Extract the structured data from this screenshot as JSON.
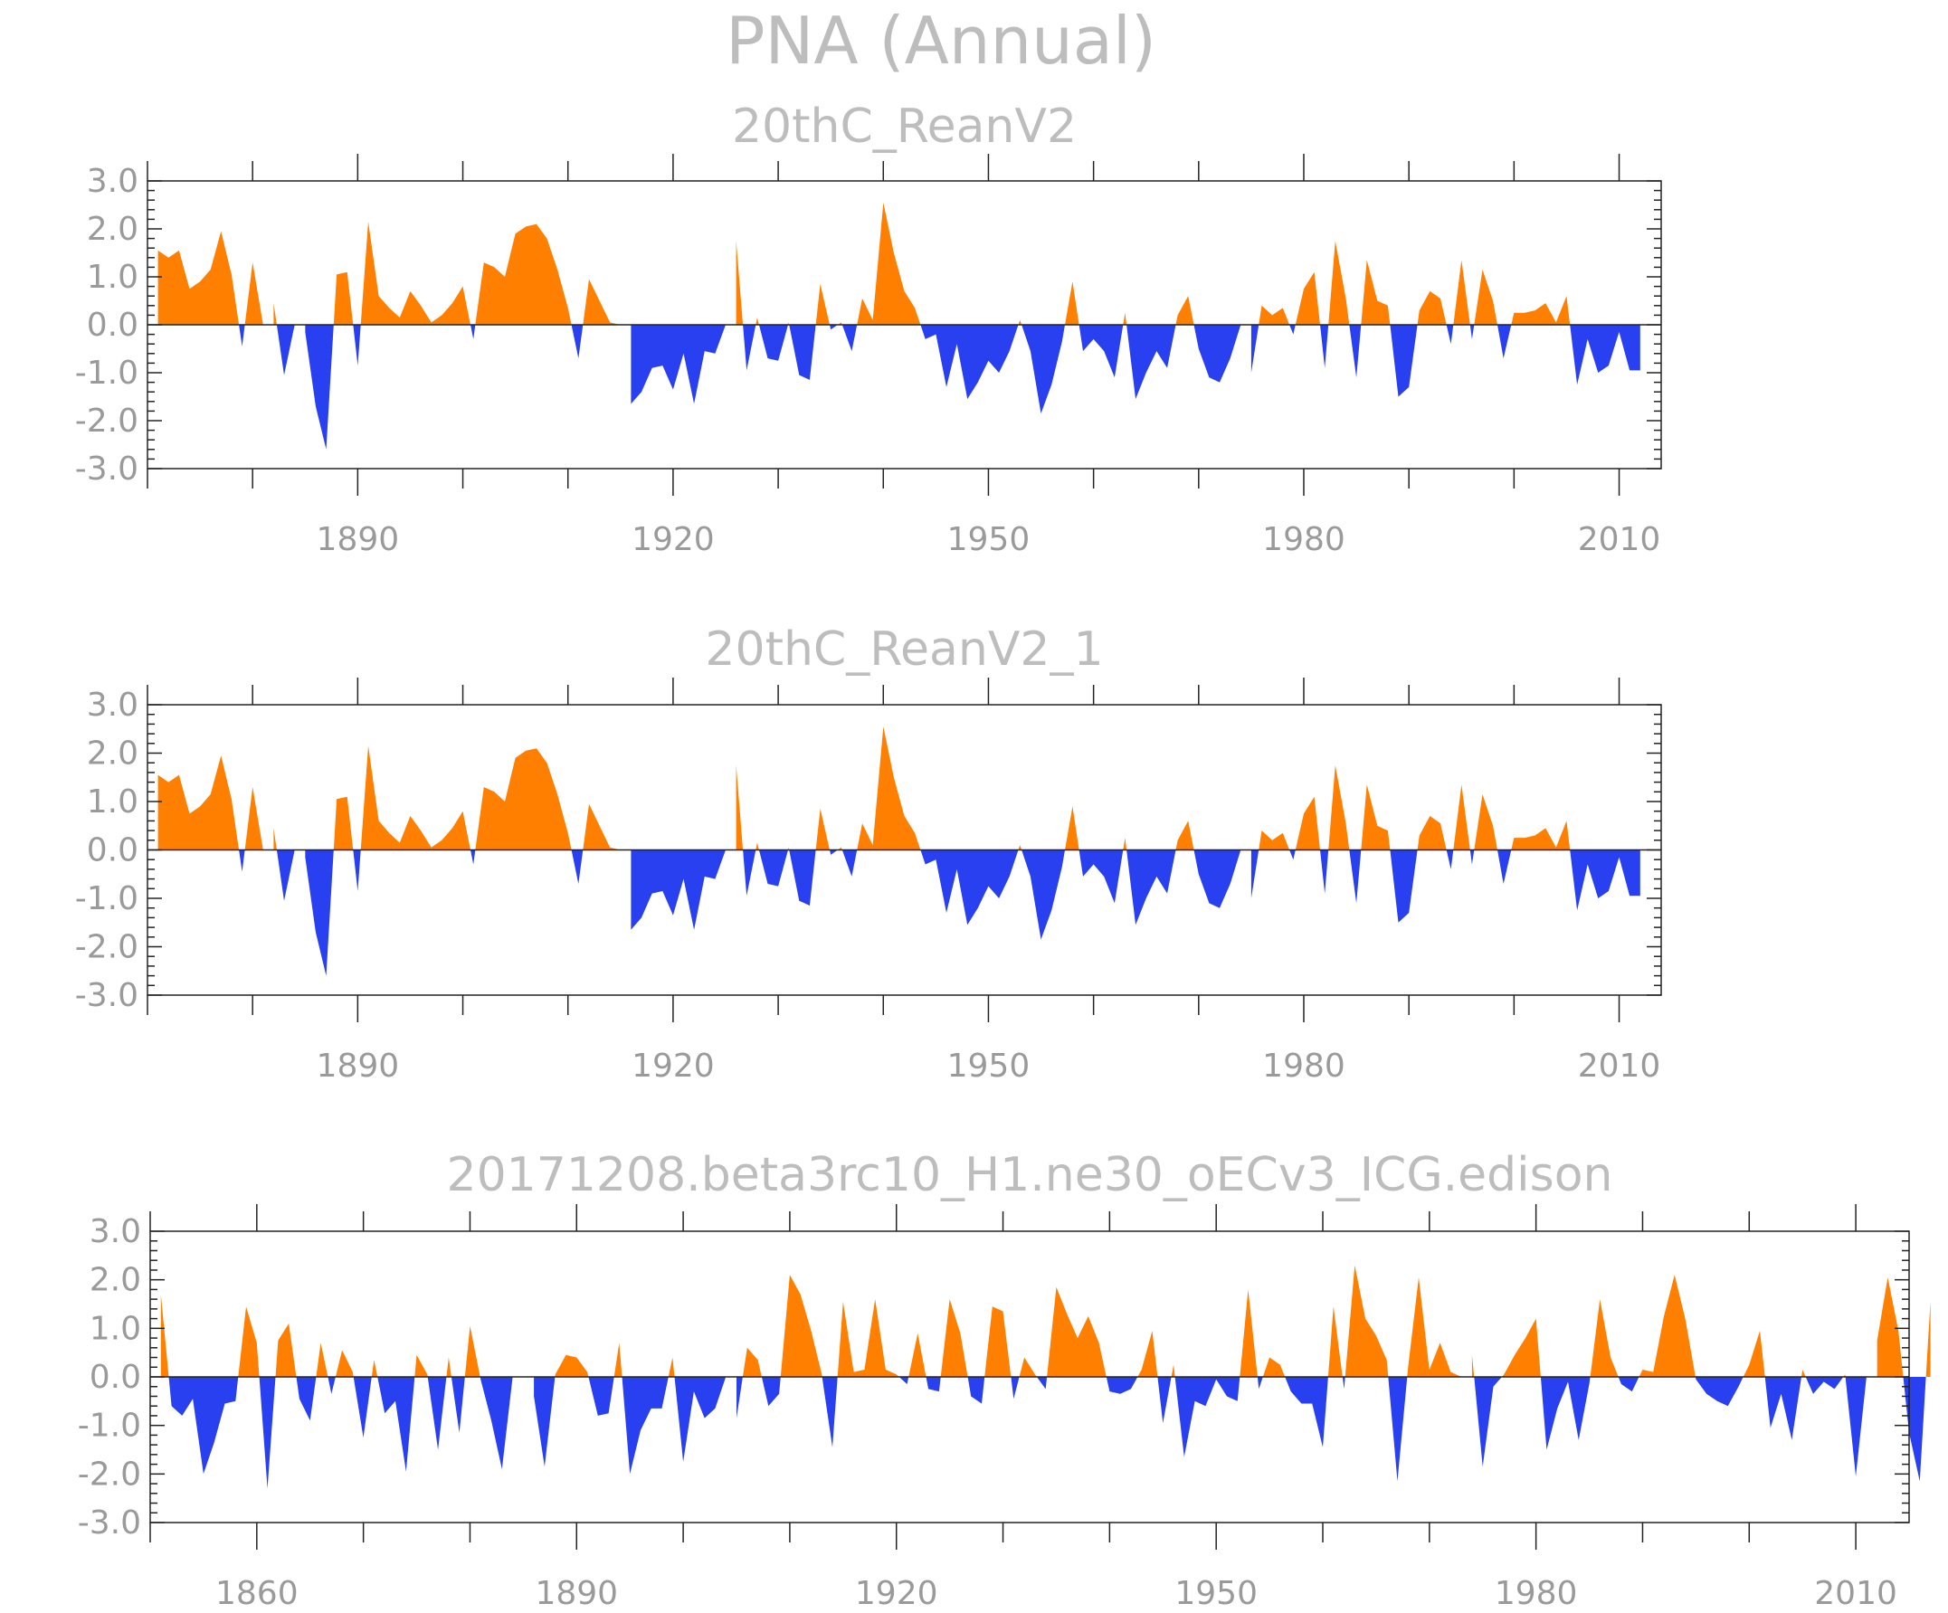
{
  "title": "PNA (Annual)",
  "colors": {
    "positive": "#ff8000",
    "negative": "#2840f0",
    "text": "#bdbdbd",
    "axis": "#222222"
  },
  "chart_data": [
    {
      "type": "area",
      "title": "20thC_ReanV2",
      "ylim": [
        -3.0,
        3.0
      ],
      "yticks": [
        "3.0",
        "2.0",
        "1.0",
        "0.0",
        "-1.0",
        "-2.0",
        "-3.0"
      ],
      "xlim": [
        1870,
        2014
      ],
      "xticks": [
        "1890",
        "1920",
        "1950",
        "1980",
        "2010"
      ],
      "start_year": 1871,
      "values": [
        1.55,
        1.4,
        1.55,
        0.75,
        0.9,
        1.15,
        1.95,
        1.05,
        -0.45,
        1.3,
        0.0,
        0.45,
        -1.05,
        0.0,
        -0.15,
        -1.7,
        -2.6,
        1.05,
        1.1,
        -0.85,
        2.15,
        0.6,
        0.35,
        0.15,
        0.7,
        0.4,
        0.05,
        0.2,
        0.45,
        0.8,
        -0.3,
        1.3,
        1.2,
        1.0,
        1.9,
        2.05,
        2.1,
        1.8,
        1.15,
        0.35,
        -0.7,
        0.95,
        0.5,
        0.05,
        0.0,
        -1.65,
        -1.4,
        -0.9,
        -0.85,
        -1.35,
        -0.6,
        -1.65,
        -0.55,
        -0.6,
        0.0,
        1.75,
        -0.95,
        0.15,
        -0.7,
        -0.75,
        0.05,
        -1.05,
        -1.15,
        0.85,
        -0.1,
        0.05,
        -0.55,
        0.55,
        0.1,
        2.55,
        1.5,
        0.7,
        0.35,
        -0.3,
        -0.2,
        -1.3,
        -0.4,
        -1.55,
        -1.2,
        -0.75,
        -1.0,
        -0.55,
        0.1,
        -0.55,
        -1.85,
        -1.25,
        -0.35,
        0.9,
        -0.55,
        -0.3,
        -0.55,
        -1.1,
        0.25,
        -1.55,
        -1.0,
        -0.55,
        -0.9,
        0.2,
        0.6,
        -0.5,
        -1.1,
        -1.2,
        -0.7,
        0.0,
        -1.0,
        0.4,
        0.2,
        0.35,
        -0.2,
        0.75,
        1.1,
        -0.9,
        1.75,
        0.55,
        -1.1,
        1.35,
        0.5,
        0.4,
        -1.5,
        -1.3,
        0.3,
        0.7,
        0.55,
        -0.4,
        1.35,
        -0.3,
        1.15,
        0.5,
        -0.7,
        0.25,
        0.25,
        0.3,
        0.45,
        0.05,
        0.6,
        -1.25,
        -0.3,
        -1.0,
        -0.85,
        -0.15,
        -0.95,
        -0.95
      ]
    },
    {
      "type": "area",
      "title": "20thC_ReanV2_1",
      "ylim": [
        -3.0,
        3.0
      ],
      "yticks": [
        "3.0",
        "2.0",
        "1.0",
        "0.0",
        "-1.0",
        "-2.0",
        "-3.0"
      ],
      "xlim": [
        1870,
        2014
      ],
      "xticks": [
        "1890",
        "1920",
        "1950",
        "1980",
        "2010"
      ],
      "start_year": 1871,
      "values": [
        1.55,
        1.4,
        1.55,
        0.75,
        0.9,
        1.15,
        1.95,
        1.05,
        -0.45,
        1.3,
        0.0,
        0.45,
        -1.05,
        0.0,
        -0.15,
        -1.7,
        -2.6,
        1.05,
        1.1,
        -0.85,
        2.15,
        0.6,
        0.35,
        0.15,
        0.7,
        0.4,
        0.05,
        0.2,
        0.45,
        0.8,
        -0.3,
        1.3,
        1.2,
        1.0,
        1.9,
        2.05,
        2.1,
        1.8,
        1.15,
        0.35,
        -0.7,
        0.95,
        0.5,
        0.05,
        0.0,
        -1.65,
        -1.4,
        -0.9,
        -0.85,
        -1.35,
        -0.6,
        -1.65,
        -0.55,
        -0.6,
        0.0,
        1.75,
        -0.95,
        0.15,
        -0.7,
        -0.75,
        0.05,
        -1.05,
        -1.15,
        0.85,
        -0.1,
        0.05,
        -0.55,
        0.55,
        0.1,
        2.55,
        1.5,
        0.7,
        0.35,
        -0.3,
        -0.2,
        -1.3,
        -0.4,
        -1.55,
        -1.2,
        -0.75,
        -1.0,
        -0.55,
        0.1,
        -0.55,
        -1.85,
        -1.25,
        -0.35,
        0.9,
        -0.55,
        -0.3,
        -0.55,
        -1.1,
        0.25,
        -1.55,
        -1.0,
        -0.55,
        -0.9,
        0.2,
        0.6,
        -0.5,
        -1.1,
        -1.2,
        -0.7,
        0.0,
        -1.0,
        0.4,
        0.2,
        0.35,
        -0.2,
        0.75,
        1.1,
        -0.9,
        1.75,
        0.55,
        -1.1,
        1.35,
        0.5,
        0.4,
        -1.5,
        -1.3,
        0.3,
        0.7,
        0.55,
        -0.4,
        1.35,
        -0.3,
        1.15,
        0.5,
        -0.7,
        0.25,
        0.25,
        0.3,
        0.45,
        0.05,
        0.6,
        -1.25,
        -0.3,
        -1.0,
        -0.85,
        -0.15,
        -0.95,
        -0.95
      ]
    },
    {
      "type": "area",
      "title": "20171208.beta3rc10_H1.ne30_oECv3_ICG.edison",
      "ylim": [
        -3.0,
        3.0
      ],
      "yticks": [
        "3.0",
        "2.0",
        "1.0",
        "0.0",
        "-1.0",
        "-2.0",
        "-3.0"
      ],
      "xlim": [
        1850,
        2015
      ],
      "xticks": [
        "1860",
        "1890",
        "1920",
        "1950",
        "1980",
        "2010"
      ],
      "start_year": 1850,
      "values": [
        0.0,
        1.7,
        -0.6,
        -0.8,
        -0.45,
        -2.0,
        -1.35,
        -0.55,
        -0.5,
        1.45,
        0.7,
        -2.3,
        0.75,
        1.1,
        -0.45,
        -0.9,
        0.7,
        -0.35,
        0.55,
        0.1,
        -1.25,
        0.35,
        -0.75,
        -0.5,
        -1.95,
        0.45,
        0.05,
        -1.5,
        0.4,
        -1.15,
        1.05,
        -0.05,
        -0.9,
        -1.9,
        0.0,
        0.0,
        -0.4,
        -1.85,
        0.05,
        0.45,
        0.4,
        0.1,
        -0.8,
        -0.75,
        0.7,
        -2.0,
        -1.1,
        -0.65,
        -0.65,
        0.4,
        -1.75,
        -0.3,
        -0.85,
        -0.65,
        0.0,
        -0.85,
        0.6,
        0.35,
        -0.6,
        -0.35,
        2.1,
        1.7,
        0.95,
        0.05,
        -1.45,
        1.55,
        0.1,
        0.15,
        1.6,
        0.15,
        0.05,
        -0.15,
        0.9,
        -0.25,
        -0.3,
        1.6,
        0.9,
        -0.4,
        -0.55,
        1.45,
        1.35,
        -0.45,
        0.4,
        0.05,
        -0.25,
        1.85,
        1.3,
        0.8,
        1.25,
        0.7,
        -0.3,
        -0.35,
        -0.25,
        0.15,
        0.95,
        -0.95,
        0.25,
        -1.65,
        -0.5,
        -0.6,
        -0.05,
        -0.4,
        -0.5,
        1.8,
        -0.25,
        0.4,
        0.25,
        -0.3,
        -0.55,
        -0.55,
        -1.45,
        1.45,
        -0.25,
        2.3,
        1.2,
        0.85,
        0.35,
        -2.15,
        0.2,
        2.05,
        0.15,
        0.7,
        0.1,
        0.0,
        0.45,
        -1.85,
        -0.2,
        0.05,
        0.45,
        0.8,
        1.2,
        -1.5,
        -0.65,
        -0.1,
        -1.3,
        -0.15,
        1.6,
        0.4,
        -0.15,
        -0.3,
        0.15,
        0.1,
        1.25,
        2.1,
        1.2,
        -0.05,
        -0.35,
        -0.5,
        -0.6,
        -0.2,
        0.25,
        0.95,
        -1.05,
        -0.35,
        -1.3,
        0.15,
        -0.35,
        -0.1,
        -0.25,
        0.05,
        -2.05,
        0.0,
        0.75,
        2.05,
        0.95,
        -1.15,
        -2.15,
        1.55
      ]
    }
  ]
}
